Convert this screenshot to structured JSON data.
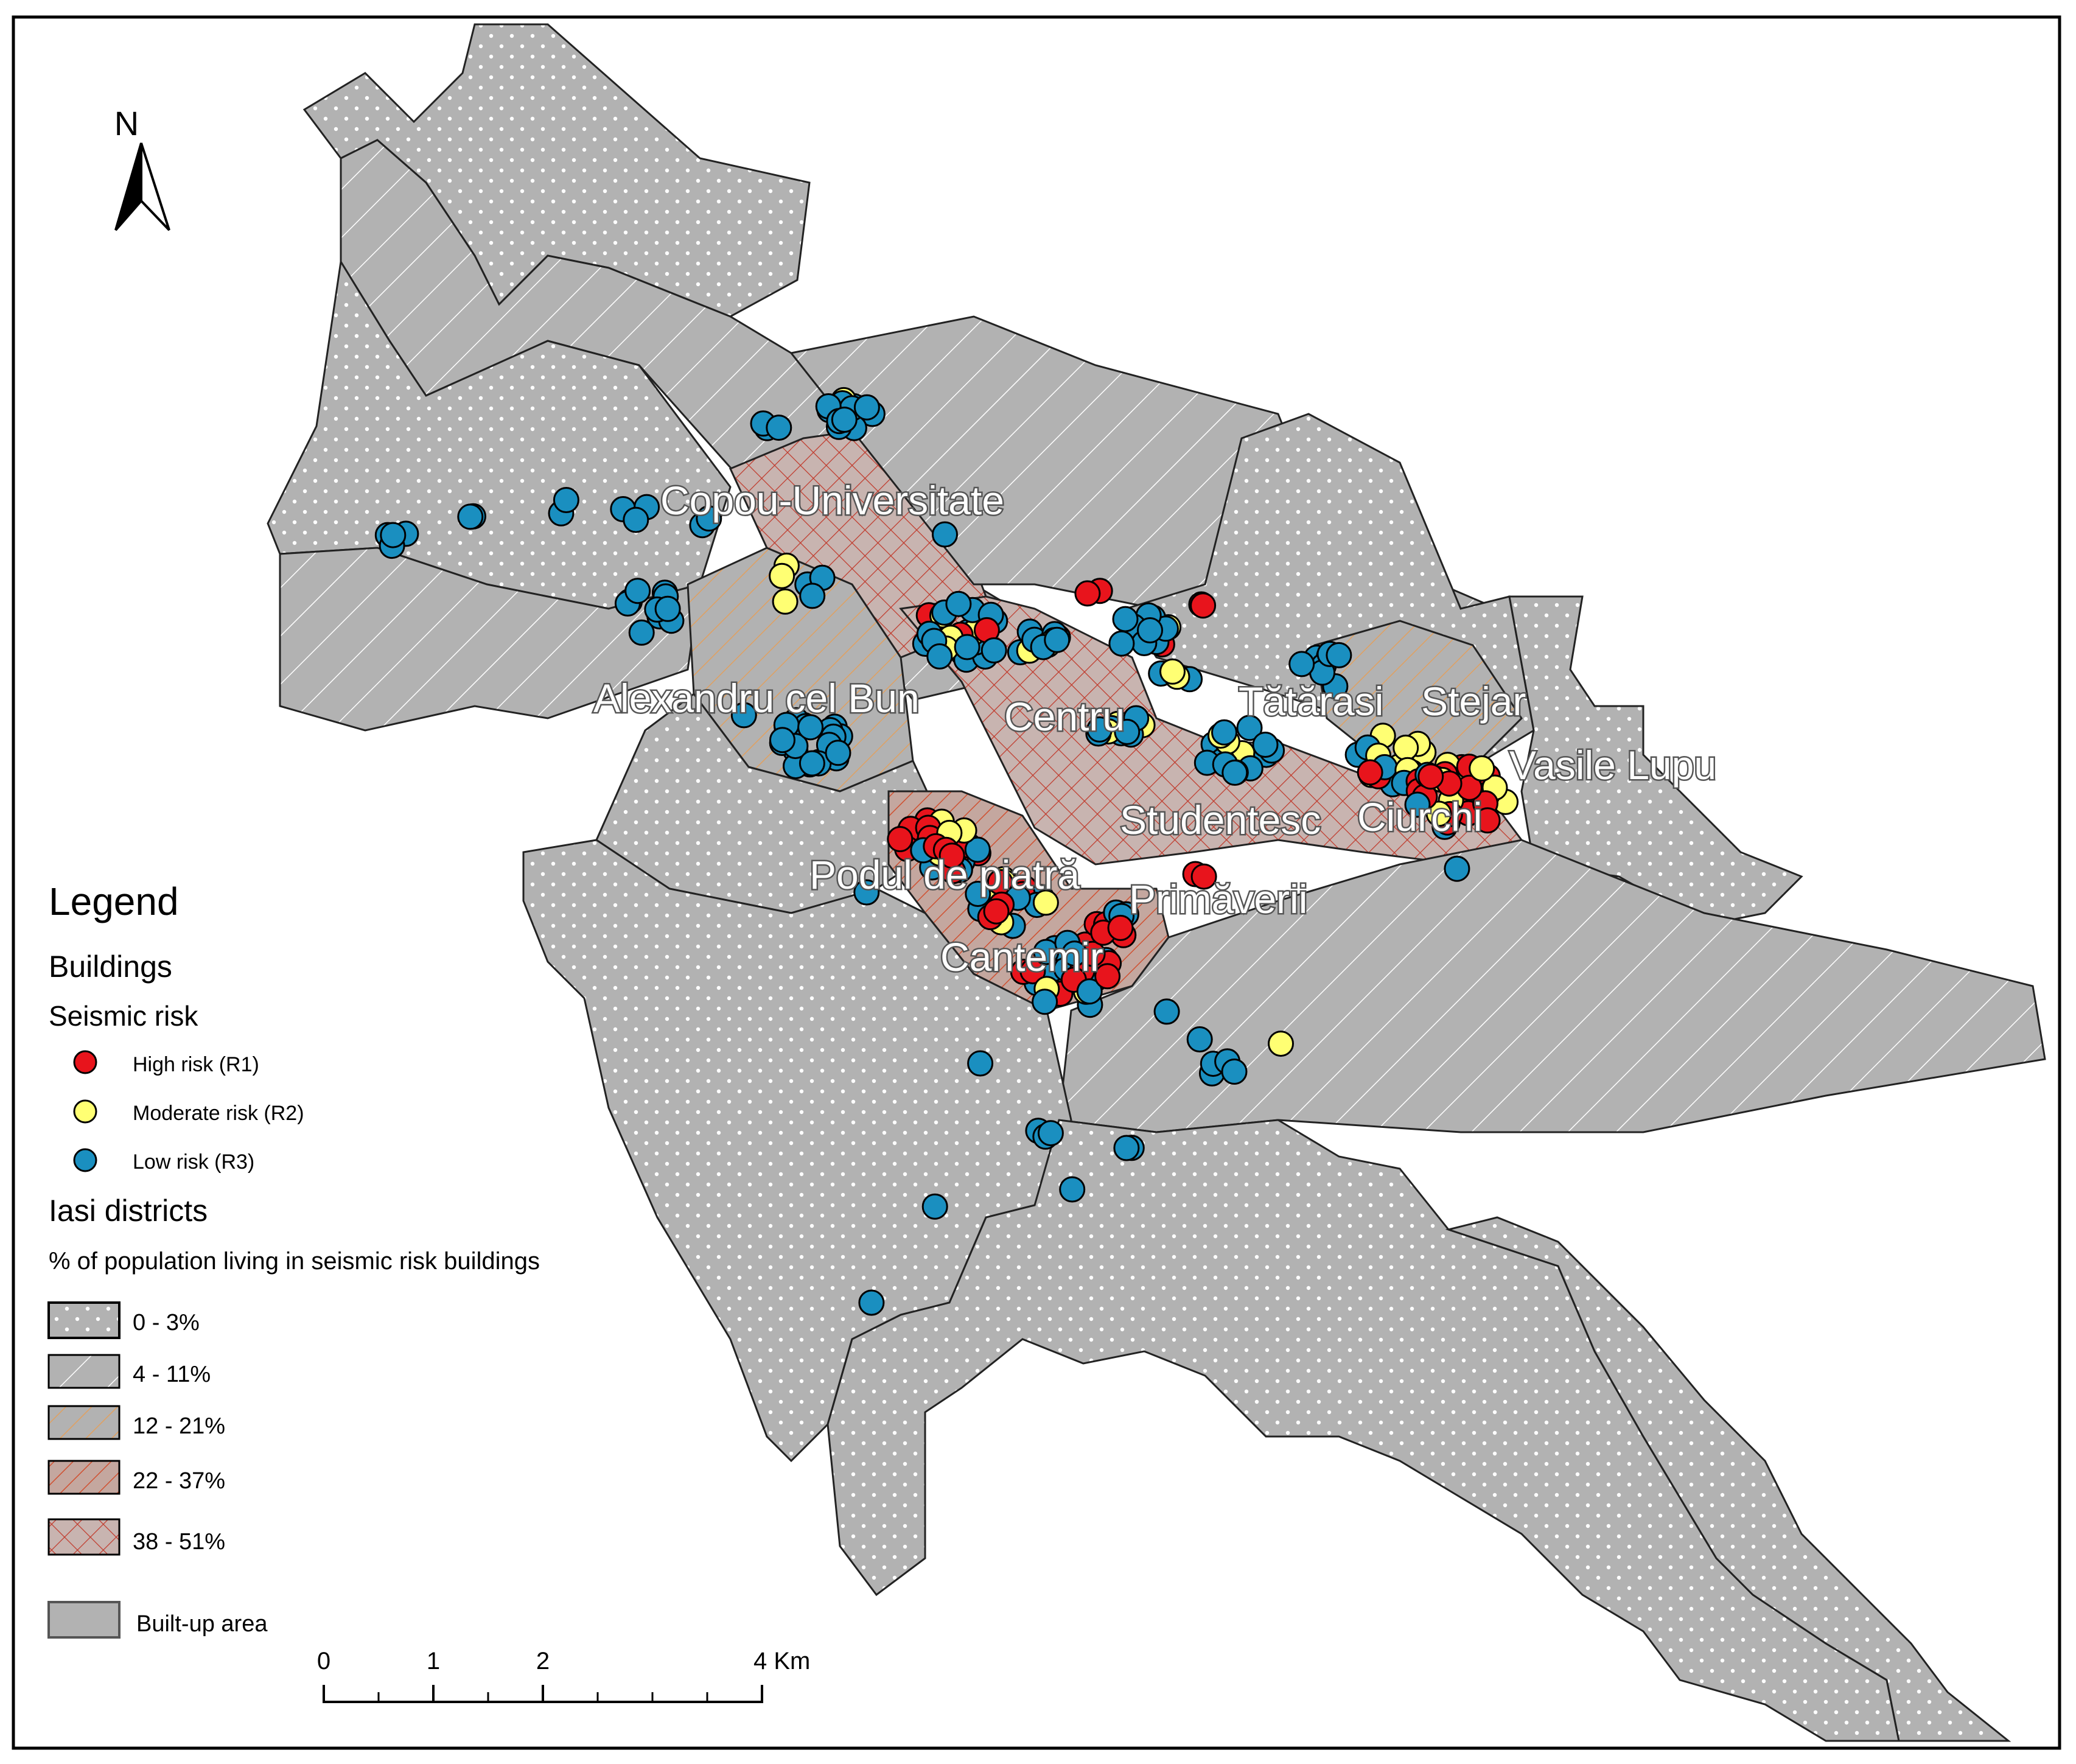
{
  "north_arrow": {
    "label": "N"
  },
  "district_labels": [
    {
      "key": "copou",
      "text": "Copou-Universitate"
    },
    {
      "key": "alexandru",
      "text": "Alexandru cel Bun"
    },
    {
      "key": "centru",
      "text": "Centru"
    },
    {
      "key": "tatarasi",
      "text": "Tătărasi"
    },
    {
      "key": "stejar",
      "text": "Stejar"
    },
    {
      "key": "vasile",
      "text": "Vasile Lupu"
    },
    {
      "key": "studentesc",
      "text": "Studentesc"
    },
    {
      "key": "ciurchi",
      "text": "Ciurchi"
    },
    {
      "key": "podul",
      "text": "Podul de piatră"
    },
    {
      "key": "primaverii",
      "text": "Primăverii"
    },
    {
      "key": "cantemir",
      "text": "Cantemir"
    }
  ],
  "legend": {
    "title": "Legend",
    "buildings_heading": "Buildings",
    "seismic_heading": "Seismic risk",
    "risk_classes": [
      {
        "label": "High risk (R1)",
        "color": "#e8141c"
      },
      {
        "label": "Moderate risk (R2)",
        "color": "#ffff73"
      },
      {
        "label": "Low risk (R3)",
        "color": "#1a8fc0"
      }
    ],
    "districts_heading": "Iasi districts",
    "districts_subheading": "% of population living in seismic risk buildings",
    "district_classes": [
      {
        "label": "0 - 3%",
        "pattern": "dots"
      },
      {
        "label": "4 - 11%",
        "pattern": "diagonal"
      },
      {
        "label": "12 - 21%",
        "pattern": "orange-diagonal"
      },
      {
        "label": "22 - 37%",
        "pattern": "red-diagonal"
      },
      {
        "label": "38 - 51%",
        "pattern": "red-crosshatch"
      }
    ],
    "builtup_label": "Built-up area",
    "builtup_color": "#b2b2b2"
  },
  "scale_bar": {
    "ticks": [
      "0",
      "1",
      "2",
      "4 Km"
    ]
  },
  "colors": {
    "builtup_gray": "#b2b2b2",
    "high_risk": "#e8141c",
    "moderate_risk": "#ffff73",
    "low_risk": "#1a8fc0",
    "crosshatch_red": "#c0392b",
    "hatch_orange": "#e0a060"
  }
}
